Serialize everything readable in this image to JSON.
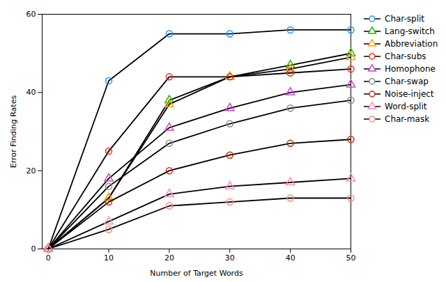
{
  "chart_data": {
    "type": "line",
    "x": [
      0,
      10,
      20,
      30,
      40,
      50
    ],
    "color": "#000000",
    "series": [
      {
        "name": "Char-split",
        "color": "#1E90FF",
        "marker": "circle",
        "values": [
          0,
          43,
          55,
          55,
          56,
          56
        ]
      },
      {
        "name": "Lang-switch",
        "color": "#22BB00",
        "marker": "triangle",
        "values": [
          0,
          13,
          38,
          44,
          47,
          50
        ]
      },
      {
        "name": "Abbreviation",
        "color": "#FFA500",
        "marker": "triangle",
        "values": [
          0,
          13,
          37,
          44,
          46,
          49
        ]
      },
      {
        "name": "Char-subs",
        "color": "#FF2200",
        "marker": "circle",
        "values": [
          0,
          25,
          44,
          44,
          45,
          46
        ]
      },
      {
        "name": "Homophone",
        "color": "#CC44CC",
        "marker": "triangle",
        "values": [
          0,
          18,
          31,
          36,
          40,
          42
        ]
      },
      {
        "name": "Char-swap",
        "color": "#888888",
        "marker": "circle",
        "values": [
          0,
          16,
          27,
          32,
          36,
          38
        ]
      },
      {
        "name": "Noise-inject",
        "color": "#CC2200",
        "marker": "circle",
        "values": [
          0,
          12,
          20,
          24,
          27,
          28
        ]
      },
      {
        "name": "Word-split",
        "color": "#FF88BB",
        "marker": "triangle",
        "values": [
          0,
          7,
          14,
          16,
          17,
          18
        ]
      },
      {
        "name": "Char-mask",
        "color": "#FF8877",
        "marker": "circle",
        "values": [
          0,
          5,
          11,
          12,
          13,
          13
        ]
      }
    ],
    "xlabel": "Number of Target Words",
    "ylabel": "Error Finding Rates",
    "xlim": [
      -1,
      50
    ],
    "ylim": [
      0,
      60
    ],
    "xticks": [
      0,
      10,
      20,
      30,
      40,
      50
    ],
    "yticks": [
      0,
      20,
      40,
      60
    ],
    "grid": false,
    "legend": "right"
  }
}
